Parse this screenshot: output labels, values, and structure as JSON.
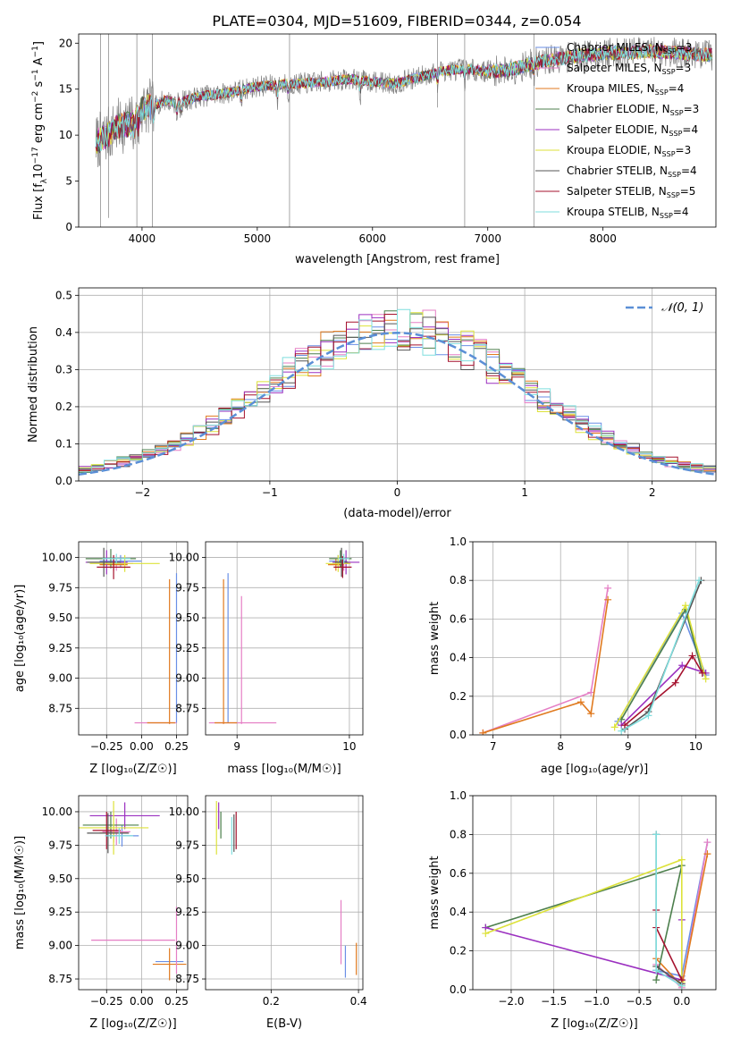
{
  "title": "PLATE=0304, MJD=51609, FIBERID=0344, z=0.054",
  "colors": {
    "Chabrier MILES": "#6a8fe6",
    "Salpeter MILES": "#e57fc5",
    "Kroupa MILES": "#e07a1f",
    "Chabrier ELODIE": "#4c7f4c",
    "Salpeter ELODIE": "#9b30c0",
    "Kroupa ELODIE": "#dde23a",
    "Chabrier STELIB": "#555555",
    "Salpeter STELIB": "#a5122e",
    "Kroupa STELIB": "#7fdede",
    "data": "#808080",
    "normal": "#5b8fd6"
  },
  "chart_data": [
    {
      "type": "line",
      "name": "spectrum",
      "xlabel": "wavelength [Angstrom, rest frame]",
      "ylabel": "Flux [f_λ 10⁻¹⁷ erg cm⁻² s⁻¹ A⁻¹]",
      "xlim": [
        3450,
        8980
      ],
      "ylim": [
        0,
        21
      ],
      "xticks": [
        4000,
        5000,
        6000,
        7000,
        8000
      ],
      "yticks": [
        0,
        5,
        10,
        15,
        20
      ],
      "grid": false,
      "legend": "upper right",
      "legend_entries": [
        {
          "model": "Chabrier MILES",
          "label": "Chabrier MILES, N",
          "sub": "SSP",
          "suffix": "=3"
        },
        {
          "model": "Salpeter MILES",
          "label": "Salpeter MILES, N",
          "sub": "SSP",
          "suffix": "=3"
        },
        {
          "model": "Kroupa MILES",
          "label": "Kroupa MILES, N",
          "sub": "SSP",
          "suffix": "=4"
        },
        {
          "model": "Chabrier ELODIE",
          "label": "Chabrier ELODIE, N",
          "sub": "SSP",
          "suffix": "=3"
        },
        {
          "model": "Salpeter ELODIE",
          "label": "Salpeter ELODIE, N",
          "sub": "SSP",
          "suffix": "=4"
        },
        {
          "model": "Kroupa ELODIE",
          "label": "Kroupa ELODIE, N",
          "sub": "SSP",
          "suffix": "=3"
        },
        {
          "model": "Chabrier STELIB",
          "label": "Chabrier STELIB, N",
          "sub": "SSP",
          "suffix": "=4"
        },
        {
          "model": "Salpeter STELIB",
          "label": "Salpeter STELIB, N",
          "sub": "SSP",
          "suffix": "=5"
        },
        {
          "model": "Kroupa STELIB",
          "label": "Kroupa STELIB, N",
          "sub": "SSP",
          "suffix": "=4"
        }
      ],
      "continuum": {
        "x": [
          3600,
          3700,
          3800,
          3900,
          4000,
          4100,
          4200,
          4300,
          4500,
          4700,
          5000,
          5200,
          5500,
          5800,
          6000,
          6200,
          6400,
          6600,
          6800,
          7000,
          7200,
          7400,
          7600,
          7800,
          8000,
          8200,
          8400,
          8600,
          8800,
          8950
        ],
        "y": [
          9.2,
          10.0,
          11.0,
          11.2,
          12.8,
          13.2,
          13.8,
          13.5,
          14.2,
          14.5,
          15.3,
          15.5,
          15.7,
          16.1,
          15.8,
          15.6,
          16.3,
          17.0,
          17.2,
          16.9,
          17.1,
          17.8,
          18.3,
          18.6,
          18.9,
          19.0,
          19.1,
          19.0,
          18.8,
          18.7
        ]
      },
      "absorption_lines": [
        3934,
        3969,
        4102,
        4300,
        4340,
        4861,
        5175,
        5270,
        5893,
        6563,
        6800,
        7400
      ]
    },
    {
      "type": "bar",
      "name": "residual histogram",
      "xlabel": "(data-model)/error",
      "ylabel": "Normed distribution",
      "xlim": [
        -2.5,
        2.5
      ],
      "ylim": [
        0,
        0.52
      ],
      "xticks": [
        -2,
        -1,
        0,
        1,
        2
      ],
      "yticks": [
        0.0,
        0.1,
        0.2,
        0.3,
        0.4,
        0.5
      ],
      "grid": true,
      "legend": "upper right",
      "legend_entries": [
        "𝒩(0, 1)"
      ],
      "bin_width": 0.1,
      "bin_start": -2.5,
      "reference": "standard normal N(0,1)"
    },
    {
      "type": "scatter",
      "name": "age vs Z",
      "xlabel": "Z [log₁₀(Z/Z☉)]",
      "ylabel": "age  [log₁₀(age/yr)]",
      "xlim": [
        -0.45,
        0.33
      ],
      "ylim": [
        8.53,
        10.13
      ],
      "xticks": [
        -0.25,
        0.0,
        0.25
      ],
      "xticklabels": [
        "−0.25",
        "0.00",
        "0.25"
      ],
      "yticks": [
        8.75,
        9.0,
        9.25,
        9.5,
        9.75,
        10.0
      ],
      "grid": true,
      "points": [
        {
          "model": "Chabrier MILES",
          "x": -0.15,
          "y": 9.97,
          "xerr": 0.15,
          "yerr": 0.05
        },
        {
          "model": "Salpeter MILES",
          "x": -0.18,
          "y": 9.95,
          "xerr": 0.12,
          "yerr": 0.06
        },
        {
          "model": "Kroupa MILES",
          "x": -0.2,
          "y": 9.94,
          "xerr": 0.1,
          "yerr": 0.05
        },
        {
          "model": "Chabrier ELODIE",
          "x": -0.22,
          "y": 9.99,
          "xerr": 0.18,
          "yerr": 0.08
        },
        {
          "model": "Salpeter ELODIE",
          "x": -0.25,
          "y": 9.96,
          "xerr": 0.15,
          "yerr": 0.1
        },
        {
          "model": "Kroupa ELODIE",
          "x": -0.12,
          "y": 9.95,
          "xerr": 0.25,
          "yerr": 0.07
        },
        {
          "model": "Chabrier STELIB",
          "x": -0.27,
          "y": 9.96,
          "xerr": 0.12,
          "yerr": 0.12
        },
        {
          "model": "Salpeter STELIB",
          "x": -0.2,
          "y": 9.92,
          "xerr": 0.12,
          "yerr": 0.1
        },
        {
          "model": "Kroupa STELIB",
          "x": -0.18,
          "y": 9.99,
          "xerr": 0.1,
          "yerr": 0.04
        },
        {
          "model": "Chabrier MILES",
          "x": 0.25,
          "y": 9.25,
          "xerr": 0.0,
          "yerr": 0.62
        },
        {
          "model": "Kroupa MILES",
          "x": 0.2,
          "y": 9.22,
          "xerr": 0.0,
          "yerr": 0.6
        },
        {
          "model": "Salpeter MILES",
          "x": 0.1,
          "y": 8.63,
          "xerr": 0.15,
          "yerr": 0.0
        },
        {
          "model": "Kroupa MILES",
          "x": 0.14,
          "y": 8.63,
          "xerr": 0.1,
          "yerr": 0.0
        }
      ]
    },
    {
      "type": "scatter",
      "name": "age vs mass",
      "xlabel": "mass [log₁₀(M/M☉)]",
      "ylabel": "",
      "xlim": [
        8.72,
        10.12
      ],
      "ylim": [
        8.53,
        10.13
      ],
      "xticks": [
        9,
        10
      ],
      "yticks": [
        8.75,
        9.0,
        9.25,
        9.5,
        9.75,
        10.0
      ],
      "grid": true,
      "points": [
        {
          "model": "Chabrier MILES",
          "x": 9.9,
          "y": 9.97,
          "xerr": 0.08,
          "yerr": 0.05
        },
        {
          "model": "Salpeter MILES",
          "x": 9.95,
          "y": 9.95,
          "xerr": 0.06,
          "yerr": 0.06
        },
        {
          "model": "Kroupa MILES",
          "x": 9.88,
          "y": 9.94,
          "xerr": 0.07,
          "yerr": 0.05
        },
        {
          "model": "Chabrier ELODIE",
          "x": 9.92,
          "y": 9.99,
          "xerr": 0.1,
          "yerr": 0.07
        },
        {
          "model": "Salpeter ELODIE",
          "x": 9.97,
          "y": 9.96,
          "xerr": 0.12,
          "yerr": 0.1
        },
        {
          "model": "Kroupa ELODIE",
          "x": 9.9,
          "y": 9.95,
          "xerr": 0.11,
          "yerr": 0.07
        },
        {
          "model": "Chabrier STELIB",
          "x": 9.93,
          "y": 9.96,
          "xerr": 0.06,
          "yerr": 0.12
        },
        {
          "model": "Salpeter STELIB",
          "x": 9.94,
          "y": 9.92,
          "xerr": 0.08,
          "yerr": 0.09
        },
        {
          "model": "Kroupa STELIB",
          "x": 9.95,
          "y": 9.99,
          "xerr": 0.05,
          "yerr": 0.04
        },
        {
          "model": "Chabrier MILES",
          "x": 8.92,
          "y": 9.25,
          "xerr": 0.0,
          "yerr": 0.62
        },
        {
          "model": "Kroupa MILES",
          "x": 8.88,
          "y": 9.22,
          "xerr": 0.0,
          "yerr": 0.6
        },
        {
          "model": "Salpeter MILES",
          "x": 9.04,
          "y": 9.15,
          "xerr": 0.0,
          "yerr": 0.53
        },
        {
          "model": "Salpeter MILES",
          "x": 9.05,
          "y": 8.63,
          "xerr": 0.3,
          "yerr": 0.0
        },
        {
          "model": "Kroupa MILES",
          "x": 8.9,
          "y": 8.63,
          "xerr": 0.1,
          "yerr": 0.0
        }
      ]
    },
    {
      "type": "line",
      "name": "mass weight vs age",
      "xlabel": "age  [log₁₀(age/yr)]",
      "ylabel": "mass weight",
      "xlim": [
        6.7,
        10.3
      ],
      "ylim": [
        0,
        1.0
      ],
      "xticks": [
        7,
        8,
        9,
        10
      ],
      "yticks": [
        0.0,
        0.2,
        0.4,
        0.6,
        0.8,
        1.0
      ],
      "grid": true,
      "series": [
        {
          "model": "Chabrier MILES",
          "x": [
            8.85,
            9.8,
            10.15
          ],
          "y": [
            0.07,
            0.63,
            0.31
          ]
        },
        {
          "model": "Salpeter MILES",
          "x": [
            6.85,
            8.45,
            8.7
          ],
          "y": [
            0.01,
            0.22,
            0.76
          ]
        },
        {
          "model": "Kroupa MILES",
          "x": [
            6.85,
            8.3,
            8.45,
            8.7
          ],
          "y": [
            0.01,
            0.17,
            0.11,
            0.7
          ]
        },
        {
          "model": "Chabrier ELODIE",
          "x": [
            8.9,
            9.85,
            10.1
          ],
          "y": [
            0.08,
            0.65,
            0.32
          ]
        },
        {
          "model": "Salpeter ELODIE",
          "x": [
            8.9,
            9.8,
            10.15
          ],
          "y": [
            0.05,
            0.36,
            0.32
          ]
        },
        {
          "model": "Kroupa ELODIE",
          "x": [
            8.8,
            9.85,
            10.15
          ],
          "y": [
            0.04,
            0.67,
            0.29
          ]
        },
        {
          "model": "Chabrier STELIB",
          "x": [
            8.95,
            9.3,
            10.08
          ],
          "y": [
            0.03,
            0.12,
            0.8
          ]
        },
        {
          "model": "Salpeter STELIB",
          "x": [
            8.95,
            9.7,
            9.95,
            10.1
          ],
          "y": [
            0.05,
            0.27,
            0.41,
            0.32
          ]
        },
        {
          "model": "Kroupa STELIB",
          "x": [
            8.9,
            9.3,
            10.05
          ],
          "y": [
            0.02,
            0.1,
            0.8
          ]
        }
      ]
    },
    {
      "type": "scatter",
      "name": "mass vs Z",
      "xlabel": "Z [log₁₀(Z/Z☉)]",
      "ylabel": "mass [log₁₀(M/M☉)]",
      "xlim": [
        -0.45,
        0.33
      ],
      "ylim": [
        8.67,
        10.12
      ],
      "xticks": [
        -0.25,
        0.0,
        0.25
      ],
      "xticklabels": [
        "−0.25",
        "0.00",
        "0.25"
      ],
      "yticks": [
        8.75,
        9.0,
        9.25,
        9.5,
        9.75,
        10.0
      ],
      "grid": true,
      "points": [
        {
          "model": "Chabrier MILES",
          "x": -0.14,
          "y": 9.82,
          "xerr": 0.12,
          "yerr": 0.08
        },
        {
          "model": "Salpeter MILES",
          "x": -0.18,
          "y": 9.85,
          "xerr": 0.1,
          "yerr": 0.1
        },
        {
          "model": "Kroupa MILES",
          "x": -0.2,
          "y": 9.84,
          "xerr": 0.1,
          "yerr": 0.07
        },
        {
          "model": "Chabrier ELODIE",
          "x": -0.22,
          "y": 9.9,
          "xerr": 0.2,
          "yerr": 0.1
        },
        {
          "model": "Salpeter ELODIE",
          "x": -0.12,
          "y": 9.97,
          "xerr": 0.25,
          "yerr": 0.1
        },
        {
          "model": "Kroupa ELODIE",
          "x": -0.2,
          "y": 9.88,
          "xerr": 0.25,
          "yerr": 0.2
        },
        {
          "model": "Chabrier STELIB",
          "x": -0.24,
          "y": 9.84,
          "xerr": 0.15,
          "yerr": 0.15
        },
        {
          "model": "Salpeter STELIB",
          "x": -0.25,
          "y": 9.86,
          "xerr": 0.1,
          "yerr": 0.14
        },
        {
          "model": "Kroupa STELIB",
          "x": -0.16,
          "y": 9.82,
          "xerr": 0.1,
          "yerr": 0.06
        },
        {
          "model": "Chabrier MILES",
          "x": 0.2,
          "y": 8.88,
          "xerr": 0.1,
          "yerr": 0.0
        },
        {
          "model": "Kroupa MILES",
          "x": 0.2,
          "y": 8.86,
          "xerr": 0.12,
          "yerr": 0.12
        },
        {
          "model": "Salpeter MILES",
          "x": -0.06,
          "y": 9.04,
          "xerr": 0.3,
          "yerr": 0.0
        },
        {
          "model": "Salpeter MILES",
          "x": 0.25,
          "y": 9.04,
          "xerr": 0.0,
          "yerr": 0.25
        }
      ]
    },
    {
      "type": "scatter",
      "name": "mass vs E(B-V)",
      "xlabel": "E(B-V)",
      "ylabel": "",
      "xlim": [
        0.05,
        0.41
      ],
      "ylim": [
        8.67,
        10.12
      ],
      "xticks": [
        0.2,
        0.4
      ],
      "xticklabels": [
        "0.2",
        "0.4"
      ],
      "yticks": [
        8.75,
        9.0,
        9.25,
        9.5,
        9.75,
        10.0
      ],
      "grid": true,
      "points": [
        {
          "model": "Chabrier MILES",
          "x": 0.37,
          "y": 8.88,
          "xerr": 0.0,
          "yerr": 0.12
        },
        {
          "model": "Salpeter MILES",
          "x": 0.36,
          "y": 9.1,
          "xerr": 0.0,
          "yerr": 0.24
        },
        {
          "model": "Kroupa MILES",
          "x": 0.395,
          "y": 8.9,
          "xerr": 0.0,
          "yerr": 0.12
        },
        {
          "model": "Chabrier ELODIE",
          "x": 0.085,
          "y": 9.9,
          "xerr": 0.0,
          "yerr": 0.1
        },
        {
          "model": "Salpeter ELODIE",
          "x": 0.08,
          "y": 9.97,
          "xerr": 0.0,
          "yerr": 0.1
        },
        {
          "model": "Kroupa ELODIE",
          "x": 0.075,
          "y": 9.88,
          "xerr": 0.0,
          "yerr": 0.2
        },
        {
          "model": "Chabrier STELIB",
          "x": 0.115,
          "y": 9.84,
          "xerr": 0.0,
          "yerr": 0.14
        },
        {
          "model": "Salpeter STELIB",
          "x": 0.12,
          "y": 9.86,
          "xerr": 0.0,
          "yerr": 0.14
        },
        {
          "model": "Kroupa STELIB",
          "x": 0.11,
          "y": 9.82,
          "xerr": 0.0,
          "yerr": 0.14
        }
      ]
    },
    {
      "type": "line",
      "name": "mass weight vs Z",
      "xlabel": "Z [log₁₀(Z/Z☉)]",
      "ylabel": "mass weight",
      "xlim": [
        -2.45,
        0.4
      ],
      "ylim": [
        0,
        1.0
      ],
      "xticks": [
        -2.0,
        -1.5,
        -1.0,
        -0.5,
        0.0
      ],
      "xticklabels": [
        "−2.0",
        "−1.5",
        "−1.0",
        "−0.5",
        "0.0"
      ],
      "yticks": [
        0.0,
        0.2,
        0.4,
        0.6,
        0.8,
        1.0
      ],
      "grid": true,
      "series": [
        {
          "model": "Chabrier MILES",
          "x": [
            -0.3,
            0.0,
            0.3
          ],
          "y": [
            0.1,
            0.07,
            0.76
          ]
        },
        {
          "model": "Salpeter MILES",
          "x": [
            -0.3,
            0.0,
            0.3
          ],
          "y": [
            0.13,
            0.01,
            0.76
          ]
        },
        {
          "model": "Kroupa MILES",
          "x": [
            -0.3,
            0.0,
            0.3
          ],
          "y": [
            0.16,
            0.02,
            0.7
          ]
        },
        {
          "model": "Chabrier ELODIE",
          "x": [
            -2.3,
            0.0,
            -0.3
          ],
          "y": [
            0.32,
            0.64,
            0.05
          ]
        },
        {
          "model": "Salpeter ELODIE",
          "x": [
            -2.3,
            0.0,
            0.0
          ],
          "y": [
            0.32,
            0.05,
            0.36
          ]
        },
        {
          "model": "Kroupa ELODIE",
          "x": [
            -2.3,
            0.0,
            0.0
          ],
          "y": [
            0.29,
            0.67,
            0.04
          ]
        },
        {
          "model": "Chabrier STELIB",
          "x": [
            -0.3,
            -0.3,
            0.0
          ],
          "y": [
            0.8,
            0.12,
            0.03
          ]
        },
        {
          "model": "Salpeter STELIB",
          "x": [
            -0.3,
            -0.3,
            0.0
          ],
          "y": [
            0.41,
            0.32,
            0.05
          ]
        },
        {
          "model": "Kroupa STELIB",
          "x": [
            -0.3,
            -0.3,
            0.0
          ],
          "y": [
            0.8,
            0.1,
            0.02
          ]
        }
      ]
    }
  ]
}
